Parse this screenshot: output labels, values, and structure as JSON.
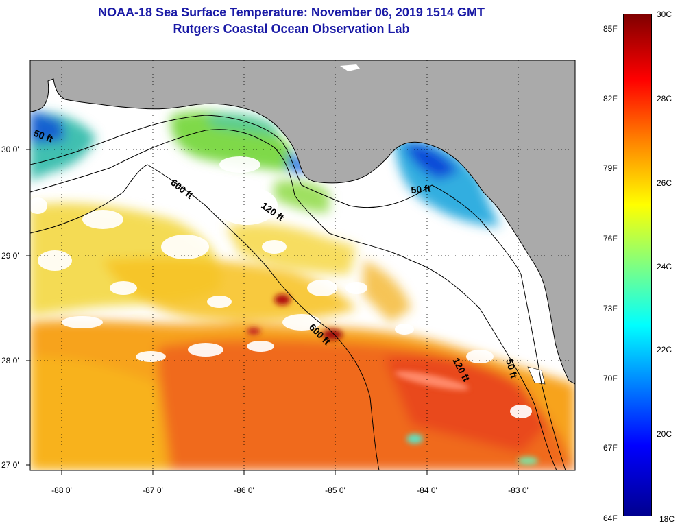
{
  "header": {
    "title": "NOAA-18 Sea Surface Temperature:  November 06, 2019 1514 GMT",
    "subtitle": "Rutgers Coastal Ocean Observation Lab"
  },
  "map": {
    "lon_ticks": [
      {
        "lon": -88,
        "label": "-88 0'"
      },
      {
        "lon": -87,
        "label": "-87 0'"
      },
      {
        "lon": -86,
        "label": "-86 0'"
      },
      {
        "lon": -85,
        "label": "-85 0'"
      },
      {
        "lon": -84,
        "label": "-84 0'"
      },
      {
        "lon": -83,
        "label": "-83 0'"
      }
    ],
    "lat_ticks": [
      {
        "lat": 30,
        "label": "30 0'"
      },
      {
        "lat": 29,
        "label": "29 0'"
      },
      {
        "lat": 28,
        "label": "28 0'"
      },
      {
        "lat": 27,
        "label": "27 0'"
      }
    ],
    "contour_labels": [
      "50 ft",
      "600 ft",
      "120 ft",
      "50 ft",
      "600 ft",
      "120 ft",
      "50 ft"
    ],
    "colors": {
      "land": "#aaaaaa",
      "no_data": "#ffffff",
      "coastline": "#000000"
    }
  },
  "colorbar": {
    "celsius_labels": [
      "30C",
      "28C",
      "26C",
      "24C",
      "22C",
      "20C",
      "18C"
    ],
    "fahrenheit_labels": [
      "85F",
      "82F",
      "79F",
      "76F",
      "73F",
      "70F",
      "67F",
      "64F"
    ],
    "range_c": [
      18,
      30
    ],
    "colors": [
      "#00008f",
      "#0000ff",
      "#0080ff",
      "#00ffff",
      "#80ff80",
      "#ffff00",
      "#ff8000",
      "#ff0000",
      "#800000"
    ]
  }
}
